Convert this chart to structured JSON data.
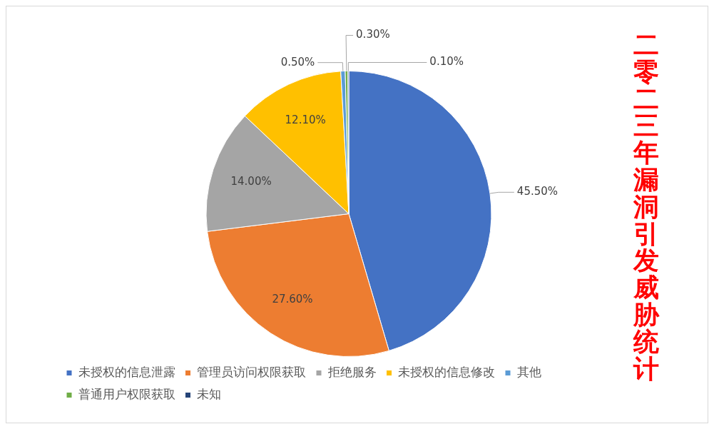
{
  "chart_data": {
    "type": "pie",
    "title": "二零二三年漏洞引发威胁统计",
    "categories": [
      "未授权的信息泄露",
      "管理员访问权限获取",
      "拒绝服务",
      "未授权的信息修改",
      "其他",
      "普通用户权限获取",
      "未知"
    ],
    "values": [
      45.5,
      27.6,
      14.0,
      12.1,
      0.5,
      0.3,
      0.1
    ],
    "colors": [
      "#4472c4",
      "#ed7d31",
      "#a5a5a5",
      "#ffc000",
      "#5b9bd5",
      "#70ad47",
      "#264478"
    ],
    "value_labels": [
      "45.50%",
      "27.60%",
      "14.00%",
      "12.10%",
      "0.50%",
      "0.30%",
      "0.10%"
    ],
    "legend": "bottom"
  }
}
